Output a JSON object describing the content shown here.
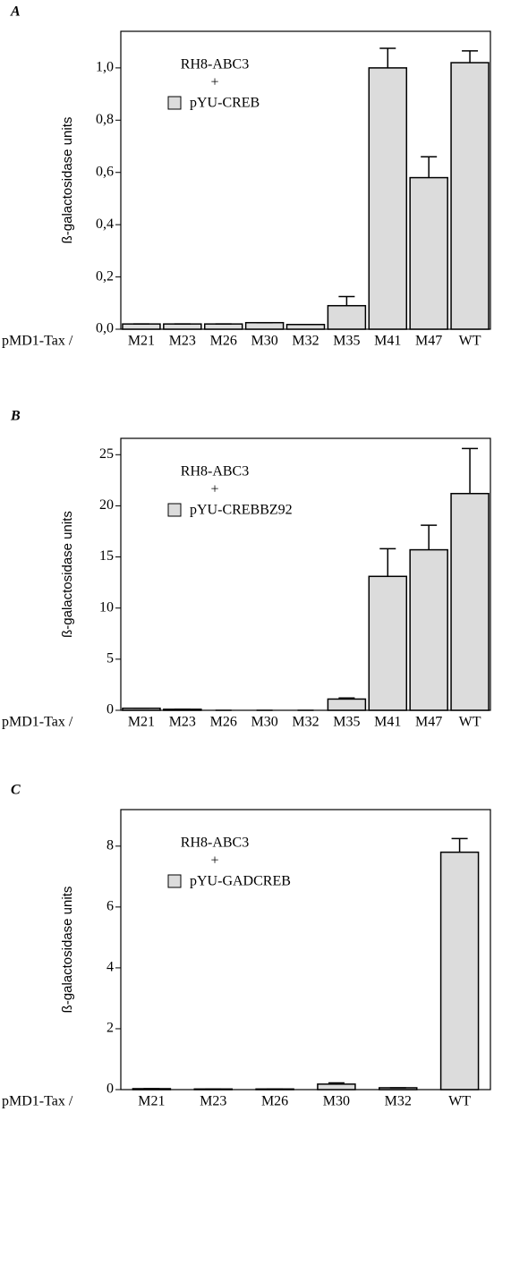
{
  "chart_data": [
    {
      "type": "bar",
      "panel_label": "A",
      "y_label": "ß-galactosidase units",
      "x_prefix": "pMD1-Tax /",
      "annotation": [
        "RH8-ABC3",
        "+",
        "pYU-CREB"
      ],
      "categories": [
        "M21",
        "M23",
        "M26",
        "M30",
        "M32",
        "M35",
        "M41",
        "M47",
        "WT"
      ],
      "values": [
        0.02,
        0.02,
        0.02,
        0.025,
        0.018,
        0.09,
        1.0,
        0.58,
        1.02
      ],
      "errors": [
        0,
        0,
        0,
        0,
        0,
        0.035,
        0.075,
        0.08,
        0.045
      ],
      "color": "#dcdcdc",
      "ylim": [
        0,
        1.14
      ],
      "yticks": [
        {
          "value": 0,
          "label": "0,0"
        },
        {
          "value": 0.2,
          "label": "0,2"
        },
        {
          "value": 0.4,
          "label": "0,4"
        },
        {
          "value": 0.6,
          "label": "0,6"
        },
        {
          "value": 0.8,
          "label": "0,8"
        },
        {
          "value": 1.0,
          "label": "1,0"
        }
      ]
    },
    {
      "type": "bar",
      "panel_label": "B",
      "y_label": "ß-galactosidase units",
      "x_prefix": "pMD1-Tax /",
      "annotation": [
        "RH8-ABC3",
        "+",
        "pYU-CREBBZ92"
      ],
      "categories": [
        "M21",
        "M23",
        "M26",
        "M30",
        "M32",
        "M35",
        "M41",
        "M47",
        "WT"
      ],
      "values": [
        0.2,
        0.1,
        0,
        0,
        0,
        1.1,
        13.1,
        15.7,
        21.2
      ],
      "errors": [
        0,
        0,
        0,
        0,
        0,
        0.1,
        2.7,
        2.4,
        4.4
      ],
      "color": "#dcdcdc",
      "ylim": [
        0,
        26.6
      ],
      "yticks": [
        0,
        5,
        10,
        15,
        20,
        25
      ]
    },
    {
      "type": "bar",
      "panel_label": "C",
      "y_label": "ß-galactosidase units",
      "x_prefix": "pMD1-Tax /",
      "annotation": [
        "RH8-ABC3",
        "+",
        "pYU-GADCREB"
      ],
      "categories": [
        "M21",
        "M23",
        "M26",
        "M30",
        "M32",
        "WT"
      ],
      "values": [
        0.03,
        0.02,
        0.02,
        0.18,
        0.06,
        7.8
      ],
      "errors": [
        0,
        0,
        0,
        0.04,
        0,
        0.45
      ],
      "color": "#dcdcdc",
      "ylim": [
        0,
        9.2
      ],
      "yticks": [
        0,
        2,
        4,
        6,
        8
      ]
    }
  ]
}
